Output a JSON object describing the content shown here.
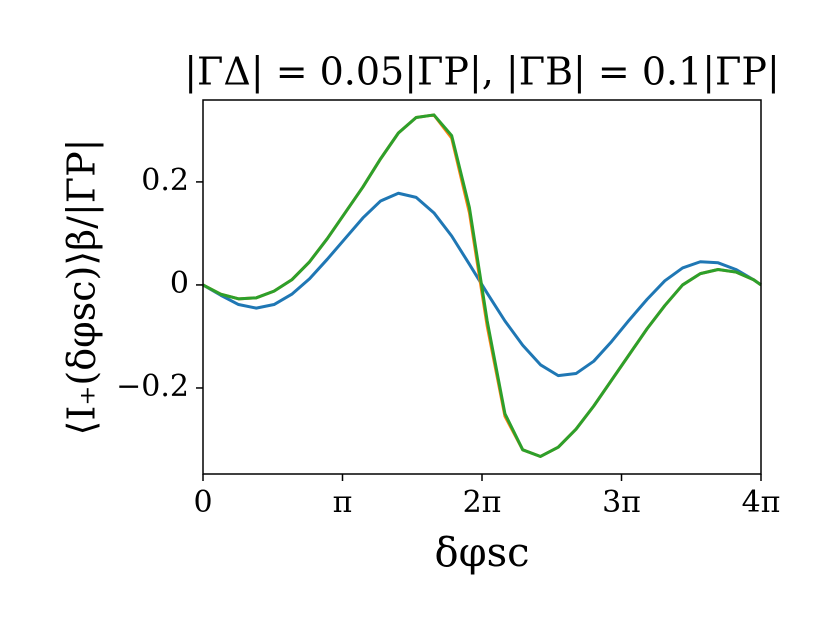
{
  "chart_data": {
    "type": "line",
    "title": "|ΓΔ| = 0.05|ΓP|, |ΓB| = 0.1|ΓP|",
    "xlabel": "δφsc",
    "ylabel": "⟨I₊(δφsc)⟩β/|ΓP|",
    "x": [
      0,
      0.4,
      0.8,
      1.2,
      1.6,
      2.0,
      2.4,
      2.8,
      3.2,
      3.6,
      4.0,
      4.4,
      4.8,
      5.2,
      5.6,
      6.0,
      6.4,
      6.8,
      7.2,
      7.6,
      8.0,
      8.4,
      8.8,
      9.2,
      9.6,
      10.0,
      10.4,
      10.8,
      11.2,
      11.6,
      12.0,
      12.4,
      12.566
    ],
    "series": [
      {
        "color": "#1f77b4",
        "values": [
          0,
          -0.02,
          -0.038,
          -0.045,
          -0.038,
          -0.018,
          0.012,
          0.05,
          0.09,
          0.13,
          0.163,
          0.178,
          0.17,
          0.14,
          0.095,
          0.04,
          -0.016,
          -0.07,
          -0.117,
          -0.155,
          -0.176,
          -0.172,
          -0.148,
          -0.11,
          -0.068,
          -0.028,
          0.008,
          0.033,
          0.045,
          0.043,
          0.03,
          0.01,
          0
        ]
      },
      {
        "color": "#ff7f0e",
        "values": [
          0,
          -0.018,
          -0.027,
          -0.025,
          -0.012,
          0.01,
          0.045,
          0.09,
          0.14,
          0.19,
          0.245,
          0.295,
          0.325,
          0.33,
          0.285,
          0.14,
          -0.08,
          -0.255,
          -0.32,
          -0.333,
          -0.315,
          -0.28,
          -0.235,
          -0.185,
          -0.135,
          -0.085,
          -0.04,
          0.0,
          0.022,
          0.03,
          0.025,
          0.01,
          0
        ]
      },
      {
        "color": "#2ca02c",
        "values": [
          0,
          -0.018,
          -0.027,
          -0.025,
          -0.012,
          0.01,
          0.045,
          0.09,
          0.14,
          0.19,
          0.245,
          0.295,
          0.325,
          0.33,
          0.29,
          0.15,
          -0.07,
          -0.25,
          -0.32,
          -0.333,
          -0.315,
          -0.28,
          -0.235,
          -0.185,
          -0.135,
          -0.085,
          -0.04,
          0.0,
          0.022,
          0.03,
          0.025,
          0.01,
          0
        ]
      }
    ],
    "xlim": [
      0,
      12.566
    ],
    "xticks": [
      0,
      {
        "value": 3.1416,
        "label": "π"
      },
      {
        "value": 6.2832,
        "label": "2π"
      },
      {
        "value": 9.4248,
        "label": "3π"
      },
      {
        "value": 12.566,
        "label": "4π"
      }
    ],
    "ylim": [
      -0.367,
      0.359
    ],
    "yticks": [
      {
        "value": -0.2,
        "label": "−0.2"
      },
      0,
      0.2
    ]
  }
}
